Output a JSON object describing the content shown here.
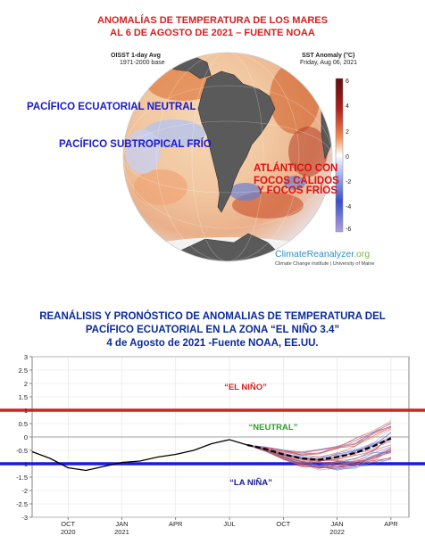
{
  "map": {
    "title_line1": "ANOMALÍAS DE TEMPERATURA DE LOS MARES",
    "title_line2": "AL 6 DE AGOSTO DE 2021 – FUENTE NOAA",
    "product_name": "OISST 1-day Avg",
    "product_base": "1971-2000 base",
    "variable": "SST Anomaly (°C)",
    "date": "Friday, Aug 06, 2021",
    "colorbar_ticks": [
      "6",
      "4",
      "2",
      "0",
      "-2",
      "-4",
      "-6"
    ],
    "credit_main": "ClimateReanalyzer",
    "credit_org": ".org",
    "credit_sub": "Climate Change Institute | University of Maine",
    "annotations": {
      "pacifico_neutral": "PACÍFICO  ECUATORIAL   NEUTRAL",
      "pacifico_frio": "PACÍFICO  SUBTROPICAL  FRÍO",
      "atlantico_1": "ATLÁNTICO CON",
      "atlantico_2": "FOCOS CÁLIDOS",
      "atlantico_3": "Y FOCOS FRÍOS"
    },
    "colors": {
      "warm": "#d2602a",
      "cold": "#6a7fd0",
      "land": "#5a5a5a",
      "ice": "#f2f2f2"
    }
  },
  "forecast": {
    "title_line1": "REANÁLISIS Y PRONÓSTICO  DE ANOMALIAS DE TEMPERATURA DEL",
    "title_line2": "PACÍFICO ECUATORIAL EN LA ZONA “EL NIÑO 3.4”",
    "title_line3": "4 de Agosto de 2021 -Fuente NOAA, EE.UU.",
    "label_nino": "“EL NIÑO”",
    "label_neutral": "“NEUTRAL”",
    "label_nina": "“LA NIÑA”"
  },
  "chart_data": {
    "type": "line",
    "ylim": [
      -3,
      3
    ],
    "yticks": [
      3,
      2.5,
      2,
      1.5,
      1,
      0.5,
      0,
      -0.5,
      -1,
      -1.5,
      -2,
      -2.5,
      -3
    ],
    "xlim": [
      "2020-08",
      "2022-05"
    ],
    "xticks": [
      {
        "month": "OCT",
        "year": "2020",
        "x": "2020-10"
      },
      {
        "month": "JAN",
        "year": "2021",
        "x": "2021-01"
      },
      {
        "month": "APR",
        "year": "",
        "x": "2021-04"
      },
      {
        "month": "JUL",
        "year": "",
        "x": "2021-07"
      },
      {
        "month": "OCT",
        "year": "",
        "x": "2021-10"
      },
      {
        "month": "JAN",
        "year": "2022",
        "x": "2022-01"
      },
      {
        "month": "APR",
        "year": "",
        "x": "2022-04"
      }
    ],
    "thresholds": [
      {
        "label": "EL NIÑO",
        "value": 1.0,
        "color": "#d42020"
      },
      {
        "label": "LA NIÑA",
        "value": -1.0,
        "color": "#1a1ad8"
      },
      {
        "label": "NEUTRAL",
        "value": 0,
        "color": "#888888"
      }
    ],
    "observed": {
      "color": "#000000",
      "x": [
        "2020-08",
        "2020-09",
        "2020-10",
        "2020-11",
        "2020-12",
        "2021-01",
        "2021-02",
        "2021-03",
        "2021-04",
        "2021-05",
        "2021-06",
        "2021-07",
        "2021-08"
      ],
      "values": [
        -0.55,
        -0.8,
        -1.15,
        -1.25,
        -1.1,
        -0.95,
        -0.9,
        -0.75,
        -0.65,
        -0.5,
        -0.25,
        -0.1,
        -0.3
      ]
    },
    "ensemble_mean": {
      "color": "#000000",
      "style": "dashed",
      "x": [
        "2021-08",
        "2021-09",
        "2021-10",
        "2021-11",
        "2021-12",
        "2022-01",
        "2022-02",
        "2022-03",
        "2022-04"
      ],
      "values": [
        -0.3,
        -0.45,
        -0.65,
        -0.8,
        -0.85,
        -0.75,
        -0.6,
        -0.35,
        -0.05
      ]
    },
    "ensemble_colors": [
      "#e0503c",
      "#3c5ae0",
      "#e08070",
      "#7090e8",
      "#c02020"
    ]
  }
}
